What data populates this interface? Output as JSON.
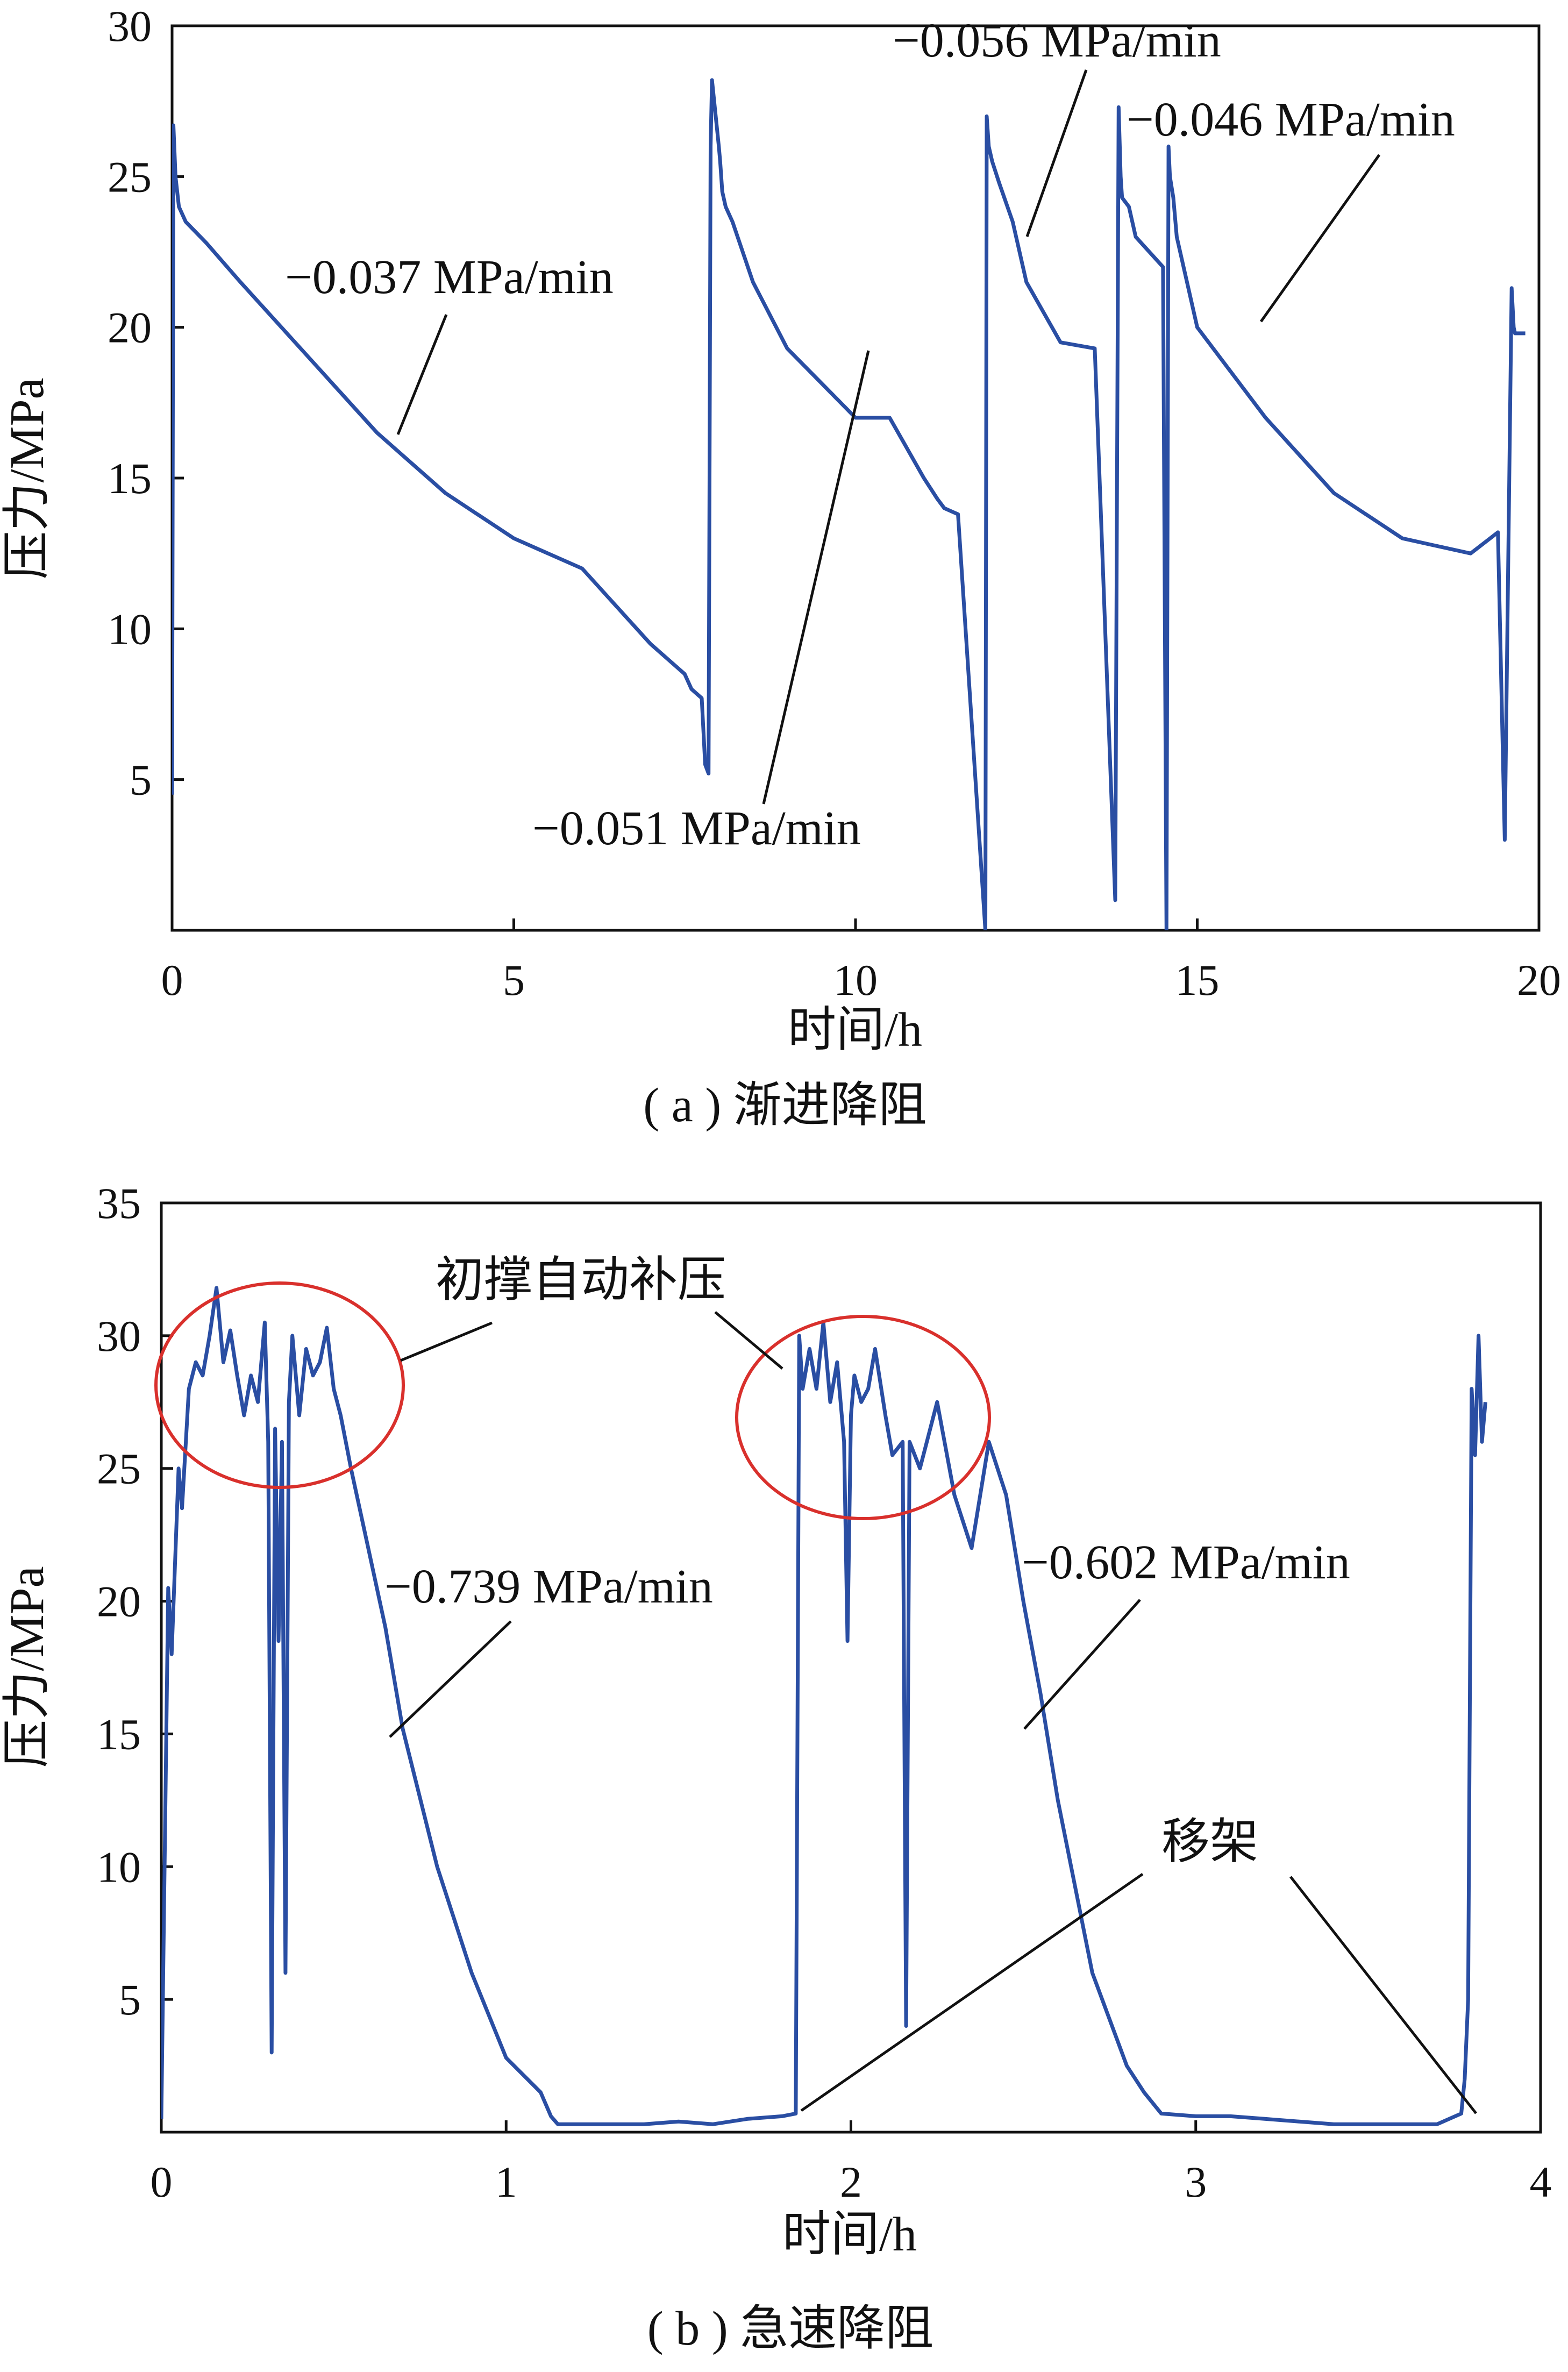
{
  "colors": {
    "series": "#2a4ea3",
    "circle": "#d9302c",
    "axis": "#111111"
  },
  "chart_data": [
    {
      "type": "line",
      "caption": "( a ) 渐进降阻",
      "xlabel": "时间/h",
      "ylabel": "压力/MPa",
      "xlim": [
        0,
        20
      ],
      "ylim": [
        0,
        30
      ],
      "xticks": [
        "0",
        "5",
        "10",
        "15",
        "20"
      ],
      "yticks": [
        "5",
        "10",
        "15",
        "20",
        "25",
        "30"
      ],
      "grid": false,
      "annotations": [
        {
          "text": "−0.037 MPa/min",
          "x": 3.3,
          "y": 16.3
        },
        {
          "text": "−0.051 MPa/min",
          "x": 10.2,
          "y": 19.3
        },
        {
          "text": "−0.056 MPa/min",
          "x": 12.8,
          "y": 22.9
        },
        {
          "text": "−0.046 MPa/min",
          "x": 16.0,
          "y": 20.1
        }
      ],
      "series": [
        {
          "x": [
            0.0,
            0.02,
            0.05,
            0.1,
            0.2,
            0.5,
            1.0,
            2.0,
            3.0,
            4.0,
            5.0,
            6.0,
            7.0,
            7.5,
            7.6,
            7.7,
            7.75,
            7.8,
            7.85,
            7.88,
            7.9,
            8.0,
            8.02,
            8.05,
            8.1,
            8.2,
            8.5,
            9.0,
            10.0,
            10.5,
            11.0,
            11.2,
            11.3,
            11.5,
            11.9,
            11.92,
            11.95,
            12.0,
            12.1,
            12.3,
            12.5,
            13.0,
            13.5,
            13.8,
            13.85,
            13.88,
            13.9,
            14.0,
            14.1,
            14.3,
            14.5,
            14.55,
            14.58,
            14.6,
            14.65,
            14.7,
            15.0,
            16.0,
            17.0,
            18.0,
            19.0,
            19.4,
            19.5,
            19.6,
            19.63,
            19.65,
            19.7,
            19.75,
            19.8
          ],
          "y": [
            4.5,
            26.7,
            25.0,
            24.0,
            23.5,
            22.8,
            21.5,
            19.0,
            16.5,
            14.5,
            13.0,
            12.0,
            9.5,
            8.5,
            8.0,
            7.8,
            7.7,
            5.5,
            5.2,
            26.0,
            28.2,
            26.0,
            25.5,
            24.5,
            24.0,
            23.5,
            21.5,
            19.3,
            17.0,
            17.0,
            15.0,
            14.3,
            14.0,
            13.8,
            0.0,
            27.0,
            26.0,
            25.5,
            24.8,
            23.5,
            21.5,
            19.5,
            19.3,
            1.0,
            27.3,
            25.0,
            24.3,
            24.0,
            23.0,
            22.5,
            22.0,
            0.0,
            26.0,
            25.0,
            24.3,
            23.0,
            20.0,
            17.0,
            14.5,
            13.0,
            12.5,
            13.2,
            3.0,
            21.3,
            20.0,
            19.8,
            19.8,
            19.8,
            19.8
          ]
        }
      ]
    },
    {
      "type": "line",
      "caption": "( b ) 急速降阻",
      "xlabel": "时间/h",
      "ylabel": "压力/MPa",
      "xlim": [
        0,
        4
      ],
      "ylim": [
        0,
        35
      ],
      "xticks": [
        "0",
        "1",
        "2",
        "3",
        "4"
      ],
      "yticks": [
        "5",
        "10",
        "15",
        "20",
        "25",
        "30",
        "35"
      ],
      "grid": false,
      "annotations": [
        {
          "text": "初撑自动补压"
        },
        {
          "text": "−0.739 MPa/min",
          "x": 0.66,
          "y": 15.2
        },
        {
          "text": "−0.602 MPa/min",
          "x": 2.48,
          "y": 15.5
        },
        {
          "text": "移架"
        }
      ],
      "series": [
        {
          "x": [
            0.0,
            0.02,
            0.03,
            0.05,
            0.06,
            0.08,
            0.1,
            0.12,
            0.14,
            0.16,
            0.18,
            0.2,
            0.22,
            0.24,
            0.26,
            0.28,
            0.3,
            0.31,
            0.32,
            0.33,
            0.34,
            0.35,
            0.36,
            0.37,
            0.38,
            0.4,
            0.42,
            0.44,
            0.46,
            0.48,
            0.5,
            0.52,
            0.55,
            0.6,
            0.65,
            0.7,
            0.8,
            0.9,
            1.0,
            1.1,
            1.13,
            1.15,
            1.2,
            1.3,
            1.4,
            1.5,
            1.6,
            1.7,
            1.8,
            1.84,
            1.85,
            1.86,
            1.88,
            1.9,
            1.92,
            1.94,
            1.96,
            1.98,
            1.99,
            2.0,
            2.01,
            2.03,
            2.05,
            2.07,
            2.1,
            2.12,
            2.15,
            2.16,
            2.17,
            2.2,
            2.25,
            2.3,
            2.35,
            2.4,
            2.45,
            2.5,
            2.55,
            2.6,
            2.7,
            2.8,
            2.85,
            2.9,
            3.0,
            3.1,
            3.2,
            3.3,
            3.4,
            3.5,
            3.6,
            3.7,
            3.77,
            3.78,
            3.79,
            3.8,
            3.81,
            3.82,
            3.83,
            3.84
          ],
          "y": [
            0.5,
            20.5,
            18.0,
            25.0,
            23.5,
            28.0,
            29.0,
            28.5,
            30.0,
            31.8,
            29.0,
            30.2,
            28.5,
            27.0,
            28.5,
            27.5,
            30.5,
            26.0,
            3.0,
            26.5,
            18.5,
            26.0,
            6.0,
            27.5,
            30.0,
            27.0,
            29.5,
            28.5,
            29.0,
            30.3,
            28.0,
            27.0,
            25.0,
            22.0,
            19.0,
            15.2,
            10.0,
            6.0,
            2.8,
            1.5,
            0.6,
            0.3,
            0.3,
            0.3,
            0.3,
            0.4,
            0.3,
            0.5,
            0.6,
            0.7,
            30.0,
            28.0,
            29.5,
            28.0,
            30.5,
            27.5,
            29.0,
            26.0,
            18.5,
            27.0,
            28.5,
            27.5,
            28.0,
            29.5,
            27.0,
            25.5,
            26.0,
            4.0,
            26.0,
            25.0,
            27.5,
            24.0,
            22.0,
            26.0,
            24.0,
            20.0,
            16.5,
            12.5,
            6.0,
            2.5,
            1.5,
            0.7,
            0.6,
            0.6,
            0.5,
            0.4,
            0.3,
            0.3,
            0.3,
            0.3,
            0.7,
            2.0,
            5.0,
            28.0,
            25.5,
            30.0,
            26.0,
            27.5
          ]
        }
      ]
    }
  ]
}
